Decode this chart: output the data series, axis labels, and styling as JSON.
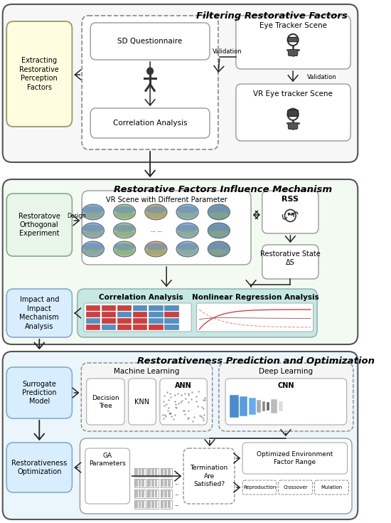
{
  "title_section1": "Filtering Restorative Factors",
  "title_section2": "Restorative Factors Influence Mechanism",
  "title_section3": "Restorativeness Prediction and Optimization",
  "bg_color": "#ffffff",
  "section1_bg": "#f7f7f7",
  "section2_bg": "#f2faf2",
  "section3_bg": "#eaf6fb",
  "box_yellow": "#fefde0",
  "box_green": "#e8f5e8",
  "box_blue": "#d8eeff",
  "box_teal": "#c5e8e5",
  "box_white": "#ffffff",
  "gray_edge": "#666666",
  "light_edge": "#999999"
}
